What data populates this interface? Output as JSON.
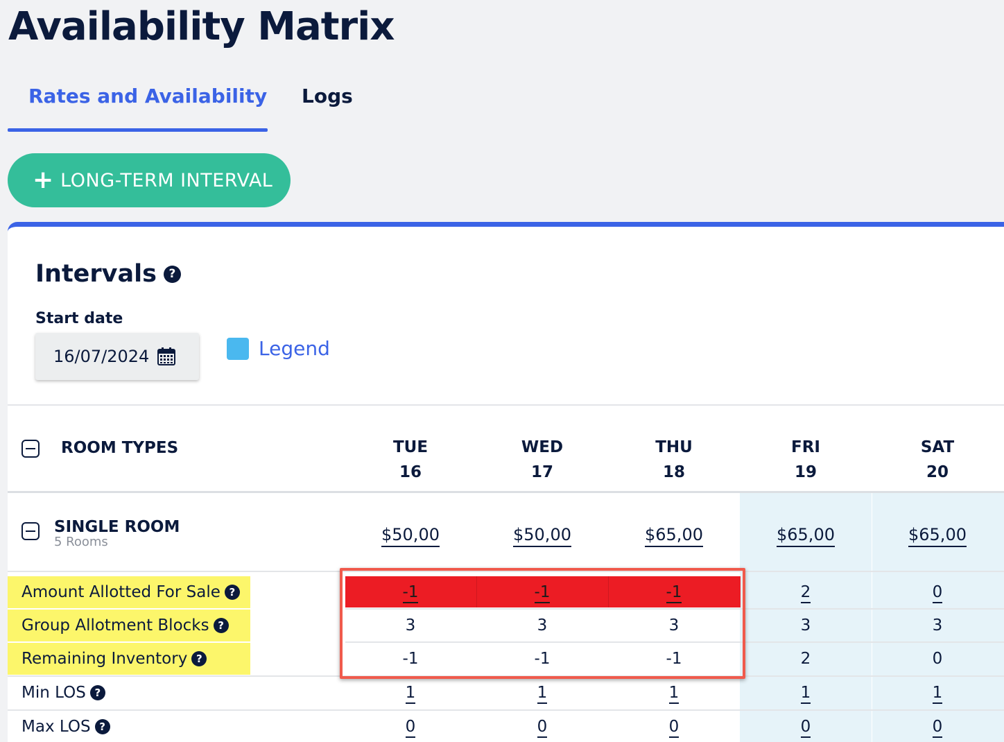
{
  "page": {
    "title": "Availability Matrix"
  },
  "tabs": [
    {
      "label": "Rates and Availability",
      "active": true
    },
    {
      "label": "Logs",
      "active": false
    }
  ],
  "long_term_button": {
    "icon": "plus-icon",
    "label": "LONG-TERM INTERVAL"
  },
  "intervals": {
    "title": "Intervals",
    "start_date_label": "Start date",
    "start_date_value": "16/07/2024",
    "legend_label": "Legend"
  },
  "table": {
    "room_types_header": "ROOM TYPES",
    "days": [
      {
        "dow": "TUE",
        "date": "16",
        "weekend": false
      },
      {
        "dow": "WED",
        "date": "17",
        "weekend": false
      },
      {
        "dow": "THU",
        "date": "18",
        "weekend": false
      },
      {
        "dow": "FRI",
        "date": "19",
        "weekend": true
      },
      {
        "dow": "SAT",
        "date": "20",
        "weekend": true
      }
    ],
    "room": {
      "name": "SINGLE ROOM",
      "count": "5 Rooms",
      "prices": [
        "$50,00",
        "$50,00",
        "$65,00",
        "$65,00",
        "$65,00"
      ]
    },
    "rows": [
      {
        "label": "Amount Allotted For Sale",
        "values": [
          "-1",
          "-1",
          "-1",
          "2",
          "0"
        ],
        "editable": true,
        "highlighted": true
      },
      {
        "label": "Group Allotment Blocks",
        "values": [
          "3",
          "3",
          "3",
          "3",
          "3"
        ],
        "editable": false,
        "highlighted": true
      },
      {
        "label": "Remaining Inventory",
        "values": [
          "-1",
          "-1",
          "-1",
          "2",
          "0"
        ],
        "editable": false,
        "highlighted": true
      },
      {
        "label": "Min LOS",
        "values": [
          "1",
          "1",
          "1",
          "1",
          "1"
        ],
        "editable": true,
        "highlighted": false
      },
      {
        "label": "Max LOS",
        "values": [
          "0",
          "0",
          "0",
          "0",
          "0"
        ],
        "editable": true,
        "highlighted": false
      }
    ]
  },
  "colors": {
    "accent": "#3b63e6",
    "button_green": "#34be9a",
    "legend_swatch": "#4ab8ef",
    "negative_alert": "#ec1c24",
    "highlight_yellow": "#fcf66b",
    "weekend_bg": "#e6f3f9"
  }
}
